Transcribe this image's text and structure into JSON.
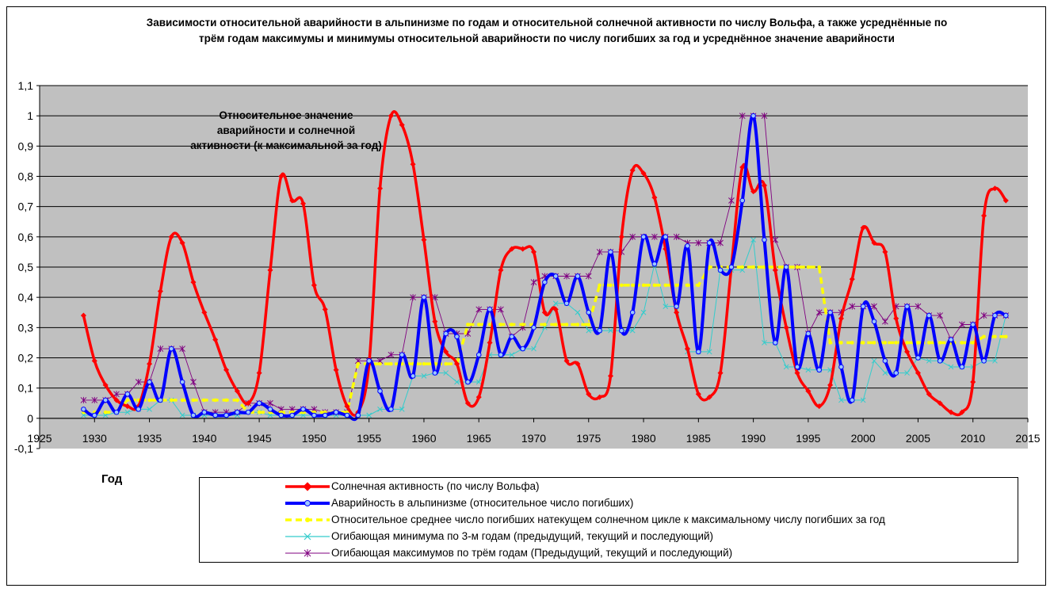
{
  "chart_data": {
    "type": "line",
    "title": "Зависимости относительной аварийности в альпинизме по годам и относительной солнечной активности по числу Вольфа, а также усреднённые по трём годам максимумы и минимумы относительной аварийности по числу погибших за год и усреднённое значение аварийности",
    "xlabel": "Год",
    "ylabel": "",
    "annotation": "Относительное значение аварийности и солнечной активности (к максимальной за год)",
    "xlim": [
      1925,
      2015
    ],
    "ylim": [
      -0.1,
      1.1
    ],
    "x_ticks": [
      "1925",
      "1930",
      "1935",
      "1940",
      "1945",
      "1950",
      "1955",
      "1960",
      "1965",
      "1970",
      "1975",
      "1980",
      "1985",
      "1990",
      "1995",
      "2000",
      "2005",
      "2010",
      "2015"
    ],
    "y_ticks": [
      "-0,1",
      "0",
      "0,1",
      "0,2",
      "0,3",
      "0,4",
      "0,5",
      "0,6",
      "0,7",
      "0,8",
      "0,9",
      "1",
      "1,1"
    ],
    "grid": true,
    "legend_position": "bottom",
    "x": [
      1929,
      1930,
      1931,
      1932,
      1933,
      1934,
      1935,
      1936,
      1937,
      1938,
      1939,
      1940,
      1941,
      1942,
      1943,
      1944,
      1945,
      1946,
      1947,
      1948,
      1949,
      1950,
      1951,
      1952,
      1953,
      1954,
      1955,
      1956,
      1957,
      1958,
      1959,
      1960,
      1961,
      1962,
      1963,
      1964,
      1965,
      1966,
      1967,
      1968,
      1969,
      1970,
      1971,
      1972,
      1973,
      1974,
      1975,
      1976,
      1977,
      1978,
      1979,
      1980,
      1981,
      1982,
      1983,
      1984,
      1985,
      1986,
      1987,
      1988,
      1989,
      1990,
      1991,
      1992,
      1993,
      1994,
      1995,
      1996,
      1997,
      1998,
      1999,
      2000,
      2001,
      2002,
      2003,
      2004,
      2005,
      2006,
      2007,
      2008,
      2009,
      2010,
      2011,
      2012,
      2013
    ],
    "series": [
      {
        "name": "Солнечная активность (по числу Вольфа)",
        "color": "#ff0000",
        "values": [
          0.34,
          0.19,
          0.11,
          0.06,
          0.04,
          0.04,
          0.18,
          0.42,
          0.6,
          0.58,
          0.45,
          0.35,
          0.26,
          0.16,
          0.09,
          0.05,
          0.15,
          0.49,
          0.8,
          0.72,
          0.71,
          0.44,
          0.36,
          0.16,
          0.04,
          0.02,
          0.18,
          0.76,
          1.0,
          0.97,
          0.84,
          0.59,
          0.32,
          0.22,
          0.18,
          0.05,
          0.07,
          0.25,
          0.49,
          0.56,
          0.56,
          0.55,
          0.35,
          0.36,
          0.19,
          0.18,
          0.08,
          0.07,
          0.14,
          0.6,
          0.82,
          0.81,
          0.73,
          0.56,
          0.35,
          0.23,
          0.08,
          0.07,
          0.15,
          0.5,
          0.83,
          0.75,
          0.77,
          0.49,
          0.3,
          0.15,
          0.09,
          0.04,
          0.11,
          0.33,
          0.46,
          0.63,
          0.58,
          0.55,
          0.33,
          0.22,
          0.15,
          0.08,
          0.05,
          0.02,
          0.02,
          0.12,
          0.67,
          0.76,
          0.72
        ]
      },
      {
        "name": "Аварийность в альпинизме (относительное число погибших)",
        "color": "#0000ff",
        "values": [
          0.03,
          0.01,
          0.06,
          0.02,
          0.08,
          0.03,
          0.12,
          0.06,
          0.23,
          0.12,
          0.01,
          0.02,
          0.01,
          0.01,
          0.02,
          0.02,
          0.05,
          0.03,
          0.01,
          0.01,
          0.03,
          0.01,
          0.01,
          0.02,
          0.01,
          0.01,
          0.19,
          0.09,
          0.03,
          0.21,
          0.14,
          0.4,
          0.15,
          0.28,
          0.27,
          0.12,
          0.21,
          0.36,
          0.21,
          0.27,
          0.23,
          0.3,
          0.45,
          0.47,
          0.38,
          0.47,
          0.35,
          0.29,
          0.55,
          0.29,
          0.35,
          0.6,
          0.51,
          0.6,
          0.37,
          0.57,
          0.22,
          0.58,
          0.49,
          0.5,
          0.72,
          1.0,
          0.59,
          0.25,
          0.5,
          0.17,
          0.28,
          0.16,
          0.35,
          0.17,
          0.06,
          0.37,
          0.32,
          0.19,
          0.15,
          0.37,
          0.2,
          0.34,
          0.19,
          0.26,
          0.17,
          0.31,
          0.19,
          0.34,
          0.34
        ]
      },
      {
        "name": "Относительное среднее число погибших натекущем солнечном цикле к максимальному числу погибших за год",
        "color": "#ffff00",
        "values": [
          0.02,
          0.02,
          0.02,
          0.02,
          0.06,
          0.06,
          0.06,
          0.06,
          0.06,
          0.06,
          0.06,
          0.06,
          0.06,
          0.06,
          0.06,
          0.02,
          0.02,
          0.02,
          0.02,
          0.02,
          0.02,
          0.02,
          0.02,
          0.02,
          0.02,
          0.18,
          0.18,
          0.18,
          0.18,
          0.18,
          0.18,
          0.18,
          0.18,
          0.18,
          0.18,
          0.31,
          0.31,
          0.31,
          0.31,
          0.31,
          0.31,
          0.31,
          0.31,
          0.31,
          0.31,
          0.31,
          0.31,
          0.44,
          0.44,
          0.44,
          0.44,
          0.44,
          0.44,
          0.44,
          0.44,
          0.44,
          0.44,
          0.5,
          0.5,
          0.5,
          0.5,
          0.5,
          0.5,
          0.5,
          0.5,
          0.5,
          0.5,
          0.5,
          0.25,
          0.25,
          0.25,
          0.25,
          0.25,
          0.25,
          0.25,
          0.25,
          0.25,
          0.25,
          0.25,
          0.25,
          0.25,
          0.25,
          0.27,
          0.27,
          0.27
        ]
      },
      {
        "name": "Огибающая минимума по 3-м годам (предыдущий, текущий и последующий)",
        "color": "#33cccc",
        "values": [
          0.01,
          0.01,
          0.01,
          0.02,
          0.02,
          0.03,
          0.03,
          0.06,
          0.06,
          0.01,
          0.01,
          0.01,
          0.01,
          0.01,
          0.01,
          0.02,
          0.02,
          0.01,
          0.01,
          0.01,
          0.01,
          0.01,
          0.01,
          0.01,
          0.01,
          0.01,
          0.01,
          0.03,
          0.03,
          0.03,
          0.14,
          0.14,
          0.15,
          0.15,
          0.12,
          0.12,
          0.12,
          0.21,
          0.21,
          0.21,
          0.23,
          0.23,
          0.3,
          0.38,
          0.38,
          0.35,
          0.29,
          0.29,
          0.29,
          0.29,
          0.29,
          0.35,
          0.51,
          0.37,
          0.37,
          0.22,
          0.22,
          0.22,
          0.49,
          0.49,
          0.49,
          0.59,
          0.25,
          0.25,
          0.17,
          0.17,
          0.16,
          0.16,
          0.16,
          0.06,
          0.06,
          0.06,
          0.19,
          0.15,
          0.15,
          0.15,
          0.2,
          0.19,
          0.19,
          0.17,
          0.17,
          0.17,
          0.19,
          0.19,
          0.34
        ]
      },
      {
        "name": "Огибающая максимумов по трём годам (Предыдущий, текущий и последующий)",
        "color": "#800080",
        "values": [
          0.06,
          0.06,
          0.06,
          0.08,
          0.08,
          0.12,
          0.12,
          0.23,
          0.23,
          0.23,
          0.12,
          0.02,
          0.02,
          0.02,
          0.02,
          0.05,
          0.05,
          0.05,
          0.03,
          0.03,
          0.03,
          0.03,
          0.02,
          0.02,
          0.02,
          0.19,
          0.19,
          0.19,
          0.21,
          0.21,
          0.4,
          0.4,
          0.4,
          0.28,
          0.28,
          0.28,
          0.36,
          0.36,
          0.36,
          0.27,
          0.3,
          0.45,
          0.47,
          0.47,
          0.47,
          0.47,
          0.47,
          0.55,
          0.55,
          0.55,
          0.6,
          0.6,
          0.6,
          0.6,
          0.6,
          0.58,
          0.58,
          0.58,
          0.58,
          0.72,
          1.0,
          1.0,
          1.0,
          0.59,
          0.5,
          0.5,
          0.28,
          0.35,
          0.35,
          0.35,
          0.37,
          0.37,
          0.37,
          0.32,
          0.37,
          0.37,
          0.37,
          0.34,
          0.34,
          0.26,
          0.31,
          0.31,
          0.34,
          0.34,
          0.34
        ]
      }
    ]
  }
}
